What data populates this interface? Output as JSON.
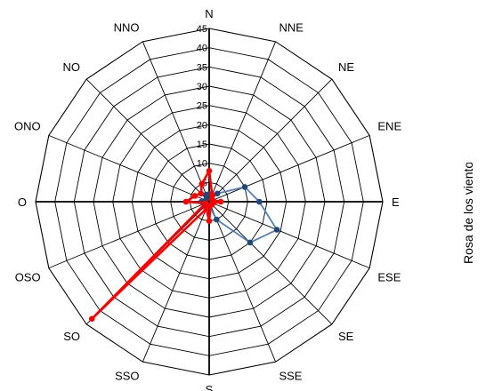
{
  "chart_data": {
    "type": "radar",
    "title": "Rosa de los vientos",
    "directions": [
      "N",
      "NNE",
      "NE",
      "ENE",
      "E",
      "ESE",
      "SE",
      "SSE",
      "S",
      "SSO",
      "SO",
      "OSO",
      "O",
      "ONO",
      "NO",
      "NNO"
    ],
    "r_ticks": [
      "0",
      "5",
      "10",
      "15",
      "20",
      "25",
      "30",
      "35",
      "40",
      "45"
    ],
    "r_range": [
      0,
      45
    ],
    "grid": true,
    "legend": "none",
    "series": [
      {
        "color": "#4f81bd",
        "marker_color": "#1f497d",
        "values": [
          2,
          2,
          3,
          10,
          13,
          19,
          15,
          5,
          1,
          1,
          1,
          1,
          2,
          1,
          1,
          2
        ]
      },
      {
        "color": "#ff0000",
        "marker_color": "#ff0000",
        "values": [
          8,
          2,
          1,
          1,
          3,
          1,
          1,
          1,
          5,
          2,
          43,
          1,
          6,
          4,
          3,
          5
        ]
      }
    ]
  }
}
